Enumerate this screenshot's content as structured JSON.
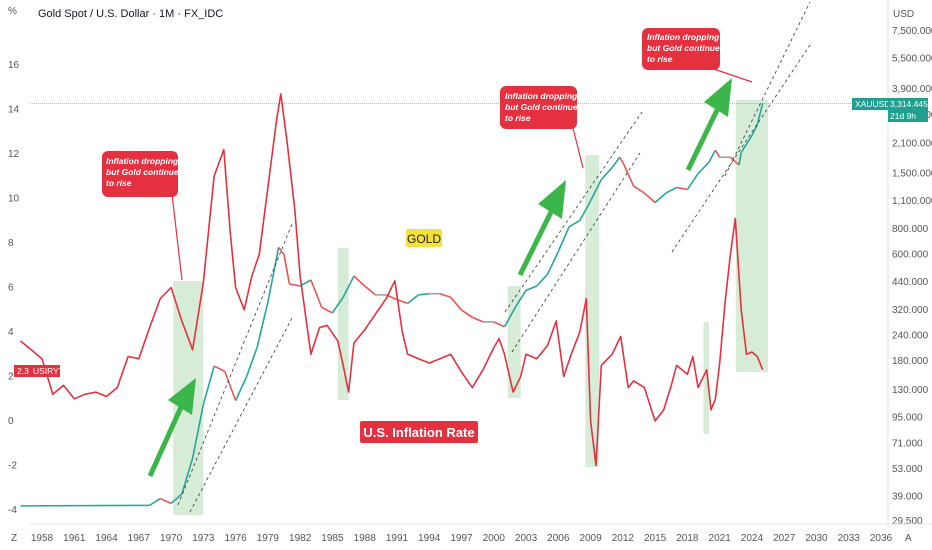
{
  "header": {
    "title": "Gold Spot / U.S. Dollar · 1M · FX_IDC",
    "left_unit": "%",
    "right_unit": "USD",
    "corner_left": "Z",
    "corner_right": "A"
  },
  "colors": {
    "inflation_line": "#e53040",
    "gold_up": "#26a69a",
    "gold_down": "#ef5350",
    "gold_flat": "#9e9e9e",
    "highlight": "#c8e6c9",
    "arrow": "#3cb64a",
    "note_bg": "#e53040",
    "xau_label_bg": "#20a090",
    "gold_tag_bg": "#f5e13a"
  },
  "chart_data": {
    "type": "line",
    "x_ticks": [
      "1958",
      "1961",
      "1964",
      "1967",
      "1970",
      "1973",
      "1976",
      "1979",
      "1982",
      "1985",
      "1988",
      "1991",
      "1994",
      "1997",
      "2000",
      "2003",
      "2006",
      "2009",
      "2012",
      "2015",
      "2018",
      "2021",
      "2024",
      "2027",
      "2030",
      "2033",
      "2036"
    ],
    "left_axis": {
      "label": "%",
      "ticks": [
        "16",
        "14",
        "12",
        "10",
        "8",
        "6",
        "4",
        "2",
        "0",
        "-2",
        "-4"
      ],
      "ylim": [
        -4.5,
        17.8
      ]
    },
    "right_axis": {
      "label": "USD",
      "scale": "log",
      "ticks": [
        "7,500.000",
        "5,500.000",
        "3,900.000",
        "2,900.000",
        "2,100.000",
        "1,500.000",
        "1,100.000",
        "800.000",
        "600.000",
        "440.000",
        "320.000",
        "240.000",
        "180.000",
        "130.000",
        "95.000",
        "71.000",
        "53.000",
        "39.000",
        "29.500"
      ]
    },
    "series": [
      {
        "name": "USIRYY",
        "axis": "left",
        "points": [
          [
            1956.0,
            3.6
          ],
          [
            1957.0,
            3.2
          ],
          [
            1958.0,
            2.8
          ],
          [
            1959.0,
            1.2
          ],
          [
            1960.0,
            1.6
          ],
          [
            1961.0,
            1.0
          ],
          [
            1962.0,
            1.2
          ],
          [
            1963.0,
            1.3
          ],
          [
            1964.0,
            1.1
          ],
          [
            1965.0,
            1.5
          ],
          [
            1966.0,
            2.9
          ],
          [
            1967.0,
            2.8
          ],
          [
            1968.0,
            4.2
          ],
          [
            1969.0,
            5.5
          ],
          [
            1970.0,
            6.0
          ],
          [
            1971.0,
            4.5
          ],
          [
            1972.0,
            3.2
          ],
          [
            1973.0,
            6.2
          ],
          [
            1974.0,
            11.0
          ],
          [
            1974.9,
            12.2
          ],
          [
            1975.5,
            8.5
          ],
          [
            1976.0,
            6.0
          ],
          [
            1976.8,
            5.0
          ],
          [
            1977.5,
            6.5
          ],
          [
            1978.2,
            7.5
          ],
          [
            1979.0,
            10.5
          ],
          [
            1979.8,
            13.5
          ],
          [
            1980.2,
            14.7
          ],
          [
            1980.8,
            12.5
          ],
          [
            1981.5,
            9.5
          ],
          [
            1982.0,
            6.5
          ],
          [
            1983.0,
            3.0
          ],
          [
            1983.8,
            4.2
          ],
          [
            1984.5,
            4.3
          ],
          [
            1985.5,
            3.6
          ],
          [
            1986.0,
            2.5
          ],
          [
            1986.5,
            1.3
          ],
          [
            1987.0,
            3.5
          ],
          [
            1988.0,
            4.1
          ],
          [
            1989.0,
            4.8
          ],
          [
            1990.0,
            5.5
          ],
          [
            1990.8,
            6.3
          ],
          [
            1991.5,
            4.0
          ],
          [
            1992.0,
            3.0
          ],
          [
            1993.0,
            2.8
          ],
          [
            1994.0,
            2.6
          ],
          [
            1995.0,
            2.8
          ],
          [
            1996.0,
            3.0
          ],
          [
            1997.0,
            2.2
          ],
          [
            1998.0,
            1.5
          ],
          [
            1999.0,
            2.3
          ],
          [
            2000.0,
            3.3
          ],
          [
            2000.5,
            3.7
          ],
          [
            2001.0,
            3.0
          ],
          [
            2001.8,
            1.3
          ],
          [
            2002.5,
            2.0
          ],
          [
            2003.0,
            3.0
          ],
          [
            2004.0,
            2.8
          ],
          [
            2005.0,
            3.4
          ],
          [
            2005.8,
            4.5
          ],
          [
            2006.5,
            2.0
          ],
          [
            2007.2,
            3.0
          ],
          [
            2008.0,
            4.0
          ],
          [
            2008.6,
            5.5
          ],
          [
            2009.0,
            0.0
          ],
          [
            2009.5,
            -2.0
          ],
          [
            2010.0,
            2.5
          ],
          [
            2011.0,
            3.0
          ],
          [
            2011.8,
            3.8
          ],
          [
            2012.5,
            1.5
          ],
          [
            2013.0,
            1.8
          ],
          [
            2014.0,
            1.5
          ],
          [
            2015.0,
            0.0
          ],
          [
            2015.8,
            0.5
          ],
          [
            2016.5,
            1.6
          ],
          [
            2017.0,
            2.5
          ],
          [
            2018.0,
            2.1
          ],
          [
            2018.5,
            2.9
          ],
          [
            2019.0,
            1.5
          ],
          [
            2019.8,
            2.3
          ],
          [
            2020.2,
            0.5
          ],
          [
            2020.6,
            1.0
          ],
          [
            2021.0,
            2.6
          ],
          [
            2021.5,
            5.3
          ],
          [
            2022.0,
            7.5
          ],
          [
            2022.45,
            9.1
          ],
          [
            2023.0,
            5.0
          ],
          [
            2023.5,
            3.0
          ],
          [
            2024.0,
            3.1
          ],
          [
            2024.5,
            2.9
          ],
          [
            2025.0,
            2.3
          ]
        ]
      },
      {
        "name": "XAUUSD",
        "axis": "right",
        "points": [
          [
            1956.0,
            35.0
          ],
          [
            1968.0,
            35.2
          ],
          [
            1969.0,
            38
          ],
          [
            1970.0,
            36
          ],
          [
            1971.0,
            40
          ],
          [
            1972.0,
            60
          ],
          [
            1973.0,
            110
          ],
          [
            1974.0,
            170
          ],
          [
            1975.0,
            160
          ],
          [
            1976.0,
            115
          ],
          [
            1977.0,
            150
          ],
          [
            1978.0,
            210
          ],
          [
            1979.0,
            350
          ],
          [
            1980.0,
            650
          ],
          [
            1980.5,
            600
          ],
          [
            1981.0,
            430
          ],
          [
            1982.0,
            420
          ],
          [
            1983.0,
            450
          ],
          [
            1984.0,
            330
          ],
          [
            1985.0,
            310
          ],
          [
            1986.0,
            370
          ],
          [
            1987.0,
            470
          ],
          [
            1988.0,
            420
          ],
          [
            1989.0,
            380
          ],
          [
            1990.0,
            380
          ],
          [
            1991.0,
            360
          ],
          [
            1992.0,
            345
          ],
          [
            1993.0,
            380
          ],
          [
            1994.0,
            385
          ],
          [
            1995.0,
            385
          ],
          [
            1996.0,
            370
          ],
          [
            1997.0,
            320
          ],
          [
            1998.0,
            295
          ],
          [
            1999.0,
            280
          ],
          [
            2000.0,
            280
          ],
          [
            2001.0,
            265
          ],
          [
            2002.0,
            330
          ],
          [
            2003.0,
            400
          ],
          [
            2004.0,
            420
          ],
          [
            2005.0,
            480
          ],
          [
            2006.0,
            620
          ],
          [
            2007.0,
            820
          ],
          [
            2008.0,
            880
          ],
          [
            2009.0,
            1100
          ],
          [
            2010.0,
            1400
          ],
          [
            2011.0,
            1600
          ],
          [
            2011.7,
            1800
          ],
          [
            2012.0,
            1700
          ],
          [
            2013.0,
            1300
          ],
          [
            2014.0,
            1200
          ],
          [
            2015.0,
            1080
          ],
          [
            2016.0,
            1200
          ],
          [
            2017.0,
            1280
          ],
          [
            2018.0,
            1250
          ],
          [
            2019.0,
            1500
          ],
          [
            2020.0,
            1700
          ],
          [
            2020.6,
            1950
          ],
          [
            2021.0,
            1800
          ],
          [
            2022.0,
            1800
          ],
          [
            2022.8,
            1650
          ],
          [
            2023.0,
            1900
          ],
          [
            2024.0,
            2300
          ],
          [
            2024.5,
            2600
          ],
          [
            2025.0,
            3314
          ]
        ]
      }
    ],
    "price_labels": [
      {
        "series": "USIRYY",
        "value": "2.3",
        "name": "USIRYY"
      },
      {
        "series": "XAUUSD",
        "value": "3,314.445",
        "name": "XAUUSD",
        "sub": "21d 9h"
      }
    ],
    "highlight_zones": [
      [
        1970.2,
        1973.0,
        "left"
      ],
      [
        1985.5,
        1986.5,
        "left"
      ],
      [
        2001.3,
        2002.5,
        "left"
      ],
      [
        2008.5,
        2009.8,
        "left"
      ],
      [
        2019.5,
        2020.0,
        "left"
      ],
      [
        2022.5,
        2025.5,
        "left"
      ]
    ],
    "annotations": [
      {
        "id": "gold-tag",
        "text": "GOLD"
      },
      {
        "id": "inflation-tag",
        "text": "U.S. Inflation Rate"
      },
      {
        "id": "note-1",
        "lines": [
          "Inflation dropping",
          "but Gold continues",
          "to rise"
        ]
      },
      {
        "id": "note-2",
        "lines": [
          "Inflation dropping",
          "but Gold continues",
          "to rise"
        ]
      },
      {
        "id": "note-3",
        "lines": [
          "Inflation dropping",
          "but Gold continues",
          "to rise"
        ]
      }
    ]
  }
}
